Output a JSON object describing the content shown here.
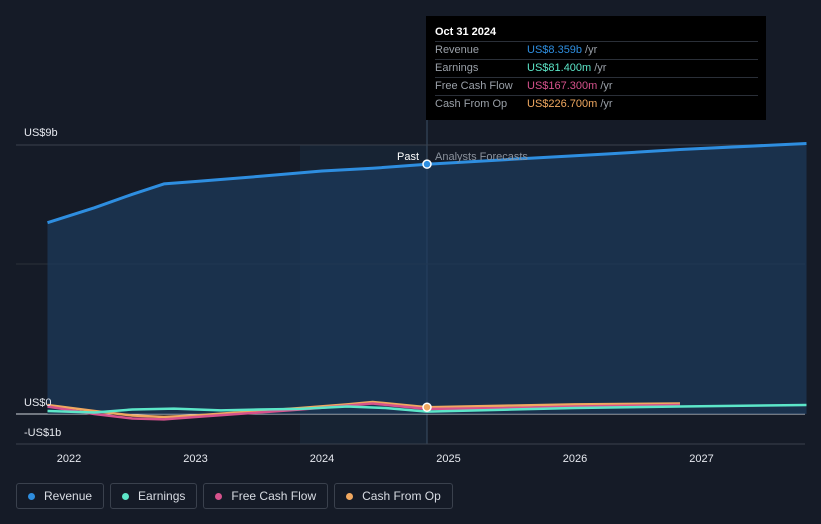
{
  "chart_data": {
    "type": "line",
    "x_ticks": [
      "2022",
      "2023",
      "2024",
      "2025",
      "2026",
      "2027"
    ],
    "y_labels": {
      "top": "US$9b",
      "zero": "US$0",
      "bottom": "-US$1b"
    },
    "ylim": [
      -1,
      9
    ],
    "divider_labels": {
      "past": "Past",
      "forecast": "Analysts Forecasts"
    },
    "series": [
      {
        "name": "Revenue",
        "color": "#2e8ee0",
        "values": [
          [
            2021.83,
            6.4
          ],
          [
            2022.2,
            6.9
          ],
          [
            2022.5,
            7.35
          ],
          [
            2022.75,
            7.7
          ],
          [
            2023.0,
            7.78
          ],
          [
            2023.5,
            7.95
          ],
          [
            2024.0,
            8.13
          ],
          [
            2024.4,
            8.22
          ],
          [
            2024.83,
            8.359
          ],
          [
            2025.5,
            8.52
          ],
          [
            2026.25,
            8.7
          ],
          [
            2026.83,
            8.85
          ],
          [
            2027.83,
            9.05
          ]
        ]
      },
      {
        "name": "Earnings",
        "color": "#5ce6c8",
        "values": [
          [
            2021.83,
            0.1
          ],
          [
            2022.2,
            0.05
          ],
          [
            2022.5,
            0.15
          ],
          [
            2022.83,
            0.18
          ],
          [
            2023.2,
            0.12
          ],
          [
            2023.5,
            0.15
          ],
          [
            2023.83,
            0.17
          ],
          [
            2024.2,
            0.25
          ],
          [
            2024.5,
            0.2
          ],
          [
            2024.83,
            0.081
          ],
          [
            2025.5,
            0.15
          ],
          [
            2026.0,
            0.2
          ],
          [
            2026.83,
            0.25
          ],
          [
            2027.83,
            0.3
          ]
        ]
      },
      {
        "name": "Free Cash Flow",
        "color": "#d6528c",
        "values": [
          [
            2021.83,
            0.25
          ],
          [
            2022.2,
            0.0
          ],
          [
            2022.5,
            -0.15
          ],
          [
            2022.75,
            -0.18
          ],
          [
            2023.0,
            -0.1
          ],
          [
            2023.5,
            0.05
          ],
          [
            2023.83,
            0.15
          ],
          [
            2024.2,
            0.28
          ],
          [
            2024.4,
            0.35
          ],
          [
            2024.83,
            0.167
          ],
          [
            2025.5,
            0.2
          ],
          [
            2026.0,
            0.25
          ],
          [
            2026.83,
            0.3
          ]
        ]
      },
      {
        "name": "Cash From Op",
        "color": "#f0a860",
        "values": [
          [
            2021.83,
            0.3
          ],
          [
            2022.2,
            0.1
          ],
          [
            2022.5,
            -0.05
          ],
          [
            2022.75,
            -0.1
          ],
          [
            2023.0,
            -0.05
          ],
          [
            2023.5,
            0.1
          ],
          [
            2023.83,
            0.2
          ],
          [
            2024.2,
            0.32
          ],
          [
            2024.4,
            0.4
          ],
          [
            2024.83,
            0.227
          ],
          [
            2025.5,
            0.28
          ],
          [
            2026.0,
            0.32
          ],
          [
            2026.83,
            0.35
          ]
        ]
      }
    ]
  },
  "tooltip": {
    "date": "Oct 31 2024",
    "unit": "/yr",
    "rows": [
      {
        "label": "Revenue",
        "value": "US$8.359b",
        "color": "#2e8ee0"
      },
      {
        "label": "Earnings",
        "value": "US$81.400m",
        "color": "#5ce6c8"
      },
      {
        "label": "Free Cash Flow",
        "value": "US$167.300m",
        "color": "#d6528c"
      },
      {
        "label": "Cash From Op",
        "value": "US$226.700m",
        "color": "#f0a860"
      }
    ]
  },
  "legend": [
    {
      "label": "Revenue",
      "color": "#2e8ee0"
    },
    {
      "label": "Earnings",
      "color": "#5ce6c8"
    },
    {
      "label": "Free Cash Flow",
      "color": "#d6528c"
    },
    {
      "label": "Cash From Op",
      "color": "#f0a860"
    }
  ]
}
